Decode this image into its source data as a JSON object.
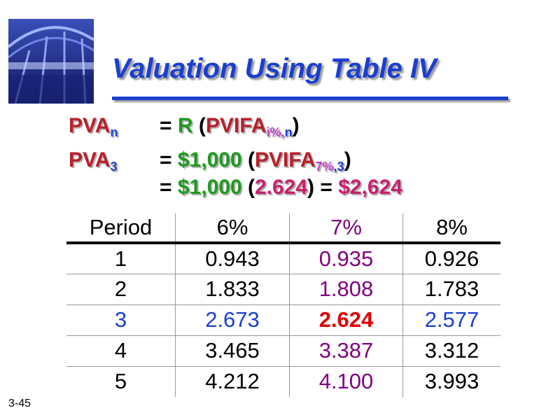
{
  "title": "Valuation Using Table IV",
  "formula": [
    {
      "label": [
        {
          "text": "PVA",
          "color": "#b8202a"
        },
        {
          "text": "n",
          "color": "#1a3fd0",
          "sub": true
        }
      ],
      "rhs": [
        {
          "text": "= ",
          "color": "#000000"
        },
        {
          "text": "R",
          "color": "#1e9a1e"
        },
        {
          "text": " (",
          "color": "#000000"
        },
        {
          "text": "PVIFA",
          "color": "#b8202a"
        },
        {
          "text": "i%,",
          "color": "#c040c8",
          "sub": true
        },
        {
          "text": "n",
          "color": "#1a3fd0",
          "sub": true
        },
        {
          "text": ")",
          "color": "#000000"
        }
      ]
    },
    {
      "label": [
        {
          "text": "PVA",
          "color": "#b8202a"
        },
        {
          "text": "3",
          "color": "#1a3fd0",
          "sub": true
        }
      ],
      "rhs": [
        {
          "text": "= ",
          "color": "#000000"
        },
        {
          "text": "$1,000",
          "color": "#1e9a1e"
        },
        {
          "text": " (",
          "color": "#000000"
        },
        {
          "text": "PVIFA",
          "color": "#b8202a"
        },
        {
          "text": "7%",
          "color": "#c040c8",
          "sub": true
        },
        {
          "text": ",3",
          "color": "#1a3fd0",
          "sub": true
        },
        {
          "text": ")",
          "color": "#000000"
        }
      ]
    },
    {
      "rhs": [
        {
          "text": "= ",
          "color": "#000000"
        },
        {
          "text": "$1,000",
          "color": "#1e9a1e"
        },
        {
          "text": " (",
          "color": "#000000"
        },
        {
          "text": "2.624",
          "color": "#c8206e"
        },
        {
          "text": ") = ",
          "color": "#000000"
        },
        {
          "text": "$2,624",
          "color": "#c8206e"
        }
      ]
    }
  ],
  "table": {
    "header": [
      {
        "text": "Period",
        "color": "#000000"
      },
      {
        "text": "6%",
        "color": "#000000"
      },
      {
        "text": "7%",
        "color": "#800080"
      },
      {
        "text": "8%",
        "color": "#000000"
      }
    ],
    "rows": [
      [
        {
          "text": "1",
          "color": "#000000"
        },
        {
          "text": "0.943",
          "color": "#000000"
        },
        {
          "text": "0.935",
          "color": "#800080"
        },
        {
          "text": "0.926",
          "color": "#000000"
        }
      ],
      [
        {
          "text": "2",
          "color": "#000000"
        },
        {
          "text": "1.833",
          "color": "#000000"
        },
        {
          "text": "1.808",
          "color": "#800080"
        },
        {
          "text": "1.783",
          "color": "#000000"
        }
      ],
      [
        {
          "text": "3",
          "color": "#1a3fd0"
        },
        {
          "text": "2.673",
          "color": "#1a3fd0"
        },
        {
          "text": "2.624",
          "color": "#e00000",
          "bold": true
        },
        {
          "text": "2.577",
          "color": "#1a3fd0"
        }
      ],
      [
        {
          "text": "4",
          "color": "#000000"
        },
        {
          "text": "3.465",
          "color": "#000000"
        },
        {
          "text": "3.387",
          "color": "#800080"
        },
        {
          "text": "3.312",
          "color": "#000000"
        }
      ],
      [
        {
          "text": "5",
          "color": "#000000"
        },
        {
          "text": "4.212",
          "color": "#000000"
        },
        {
          "text": "4.100",
          "color": "#800080"
        },
        {
          "text": "3.993",
          "color": "#000000"
        }
      ]
    ]
  },
  "slide_number": "3-45"
}
